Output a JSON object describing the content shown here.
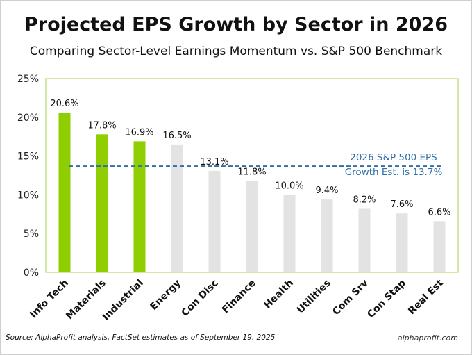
{
  "page": {
    "title": "Projected EPS Growth by Sector in 2026",
    "subtitle": "Comparing Sector-Level Earnings Momentum vs. S&P 500 Benchmark",
    "source": "Source: AlphaProfit analysis, FactSet estimates as of September 19, 2025",
    "brand": "alphaprofit.com"
  },
  "chart_data": {
    "type": "bar",
    "categories": [
      "Info Tech",
      "Materials",
      "Industrial",
      "Energy",
      "Con Disc",
      "Finance",
      "Health",
      "Utilities",
      "Com Srv",
      "Con Stap",
      "Real Est"
    ],
    "values": [
      20.6,
      17.8,
      16.9,
      16.5,
      13.1,
      11.8,
      10.0,
      9.4,
      8.2,
      7.6,
      6.6
    ],
    "value_labels": [
      "20.6%",
      "17.8%",
      "16.9%",
      "16.5%",
      "13.1%",
      "11.8%",
      "10.0%",
      "9.4%",
      "8.2%",
      "7.6%",
      "6.6%"
    ],
    "ylim": [
      0,
      25
    ],
    "ytick_values": [
      0,
      5,
      10,
      15,
      20,
      25
    ],
    "ytick_labels": [
      "0%",
      "5%",
      "10%",
      "15%",
      "20%",
      "25%"
    ],
    "grid": false,
    "highlighted_count": 3,
    "highlight_color": "#8fce00",
    "base_color": "#e3e3e3",
    "plot_border_color": "#b8d96a",
    "reference_line": {
      "value": 13.7,
      "color": "#2f6fa7",
      "style": "dashed",
      "label_lines": [
        "2026 S&P 500 EPS",
        "Growth Est. is 13.7%"
      ]
    }
  }
}
